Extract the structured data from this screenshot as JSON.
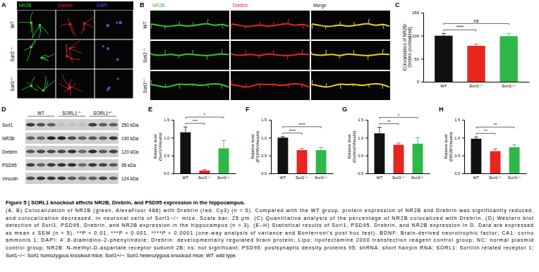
{
  "figure": {
    "panel_labels": [
      "A",
      "B",
      "C",
      "D",
      "E",
      "F",
      "G",
      "H"
    ],
    "panel_a": {
      "columns": [
        "NR2B",
        "Drebrin",
        "DAPI"
      ],
      "colors": [
        "#3cd23c",
        "#e8251f",
        "#4a5ae8"
      ],
      "rows": [
        "WT",
        "Sorl1−/−",
        "Sorl1+/−"
      ]
    },
    "panel_b": {
      "columns": [
        "NR2B",
        "Drebrin",
        "Merge"
      ],
      "colors": [
        "#2fb82f",
        "#e8251f",
        "#222222"
      ],
      "rows": [
        "WT",
        "Sorl1−/−",
        "Sorl1+/−"
      ]
    },
    "panel_d": {
      "groups": [
        "WT",
        "SORL1−/−",
        "SORL1+/−"
      ],
      "bands": [
        {
          "name": "Sorl1",
          "size": "250 kDa"
        },
        {
          "name": "NR2B",
          "size": "190 kDa"
        },
        {
          "name": "Drebrin",
          "size": "120 kDa"
        },
        {
          "name": "PSD95",
          "size": "95 kDa"
        },
        {
          "name": "Vinculin",
          "size": "124 kDa"
        }
      ]
    }
  },
  "chart_data": [
    {
      "type": "bar",
      "ylabel": [
        "Colocalization of NR2B/",
        "Drebrin (normalized)"
      ],
      "categories": [
        "WT",
        "Sorl1−/−",
        "Sorl1+/−"
      ],
      "values": [
        100,
        78,
        99
      ],
      "error": [
        5,
        4,
        6
      ],
      "colors": [
        "#111111",
        "#e8251f",
        "#2fb84a"
      ],
      "ylim": [
        0,
        150
      ],
      "yticks": [
        0,
        50,
        100,
        150
      ],
      "annotations": [
        {
          "text": "****",
          "between": [
            "WT",
            "Sorl1−/−"
          ]
        },
        {
          "text": "ns",
          "between": [
            "WT",
            "Sorl1+/−"
          ]
        }
      ]
    },
    {
      "type": "bar",
      "ylabel": [
        "Relative level",
        "(Sorl1/Vinculin)"
      ],
      "categories": [
        "WT",
        "Sorl1−/−",
        "Sorl1+/−"
      ],
      "values": [
        1.15,
        0.08,
        0.7
      ],
      "error": [
        0.15,
        0.03,
        0.22
      ],
      "colors": [
        "#111111",
        "#e8251f",
        "#2fb84a"
      ],
      "ylim": [
        0,
        1.5
      ],
      "yticks": [
        {
          "value": 0,
          "label": "0.0"
        },
        0.5,
        {
          "value": 1,
          "label": "1.0"
        },
        1.5
      ],
      "annotations": [
        {
          "text": "***",
          "between": [
            "WT",
            "Sorl1−/−"
          ]
        },
        {
          "text": "*",
          "between": [
            "WT",
            "Sorl1+/−"
          ]
        }
      ]
    },
    {
      "type": "bar",
      "ylabel": [
        "Relative level",
        "(PSD95/Vinculin)"
      ],
      "categories": [
        "WT",
        "Sorl1−/−",
        "Sorl1+/−"
      ],
      "values": [
        1.0,
        0.65,
        0.65
      ],
      "error": [
        0.03,
        0.04,
        0.07
      ],
      "colors": [
        "#111111",
        "#e8251f",
        "#2fb84a"
      ],
      "ylim": [
        0,
        1.5
      ],
      "yticks": [
        {
          "value": 0,
          "label": "0.0"
        },
        0.5,
        {
          "value": 1,
          "label": "1.0"
        },
        1.5
      ],
      "annotations": [
        {
          "text": "****",
          "between": [
            "WT",
            "Sorl1−/−"
          ]
        },
        {
          "text": "****",
          "between": [
            "WT",
            "Sorl1+/−"
          ]
        }
      ]
    },
    {
      "type": "bar",
      "ylabel": [
        "Relative level",
        "(Drebrin/Vinculin)"
      ],
      "categories": [
        "WT",
        "Sorl1−/−",
        "Sorl1+/−"
      ],
      "values": [
        1.12,
        0.8,
        0.83
      ],
      "error": [
        0.17,
        0.05,
        0.17
      ],
      "colors": [
        "#111111",
        "#e8251f",
        "#2fb84a"
      ],
      "ylim": [
        0,
        1.5
      ],
      "yticks": [
        {
          "value": 0,
          "label": "0.0"
        },
        0.5,
        {
          "value": 1,
          "label": "1.0"
        },
        1.5
      ],
      "annotations": [
        {
          "text": "**",
          "between": [
            "WT",
            "Sorl1−/−"
          ]
        },
        {
          "text": "*",
          "between": [
            "WT",
            "Sorl1+/−"
          ]
        }
      ]
    },
    {
      "type": "bar",
      "ylabel": [
        "Relative level",
        "(NR2B/Vinculin)"
      ],
      "categories": [
        "WT",
        "Sorl1−/−",
        "Sorl1+/−"
      ],
      "values": [
        0.97,
        0.62,
        0.73
      ],
      "error": [
        0.05,
        0.07,
        0.07
      ],
      "colors": [
        "#111111",
        "#e8251f",
        "#2fb84a"
      ],
      "ylim": [
        0,
        1.5
      ],
      "yticks": [
        {
          "value": 0,
          "label": "0.0"
        },
        0.5,
        {
          "value": 1,
          "label": "1.0"
        },
        1.5
      ],
      "annotations": [
        {
          "text": "**",
          "between": [
            "WT",
            "Sorl1−/−"
          ]
        },
        {
          "text": "**",
          "between": [
            "WT",
            "Sorl1+/−"
          ]
        }
      ]
    }
  ],
  "caption": {
    "title": "Figure 5 | SORL1 knockout affects NR2B, Drebrin, and PSD95 expression in the hippocampus.",
    "lines": [
      "(A, B) Colocalization of NR2B (green, AlexaFluor 488) with Drebrin (red, Cy3) (n = 5). Compared with the WT group, protein expression of NR2B and Drebrin was significantly reduced,",
      "and colocalization decreased, in neuronal cells of Sorl1−/− mice. Scale bar: 25 μm. (C) Quantitative analysis of the percentage of NR2B colocalized with Drebrin. (D) Western blot",
      "detection of Sorl1, PSD95, Drebrin, and NR2B expression in the hippocampus (n > 3). (E–H) Statistical results of Sorl1, PSD95, Drebrin, and NR2B expression in D. Data are expressed",
      "as mean ± SEM (n = 5). **P < 0.01, ***P < 0.001, ****P < 0.0001 (one-way analysis of variance and Bonferroni's post hoc test). BDNF: Brain-derived neurotrophic factor; CA1: cornu",
      "ammonis 1; DAPI: 4′,6-diamidino-2-phenylindole; Drebrin: developmentally regulated brain protein; Lipo: lipofectamine 2000 transfection reagent control group; NC: normal plasmid",
      "control group; NR2B: N-methyl-D-aspartate receptor subunit 2B; ns: not significant; PSD95: postsynaptic density proteins 95; shRNA: short hairpin RNA; SORL1: Sortilin related receptor 1;",
      "Sorl1−/−: Sorl1 homozygous knockout mice; Sorl1+/−: Sorl1 heterozygous knockout mice; WT: wild type."
    ]
  }
}
